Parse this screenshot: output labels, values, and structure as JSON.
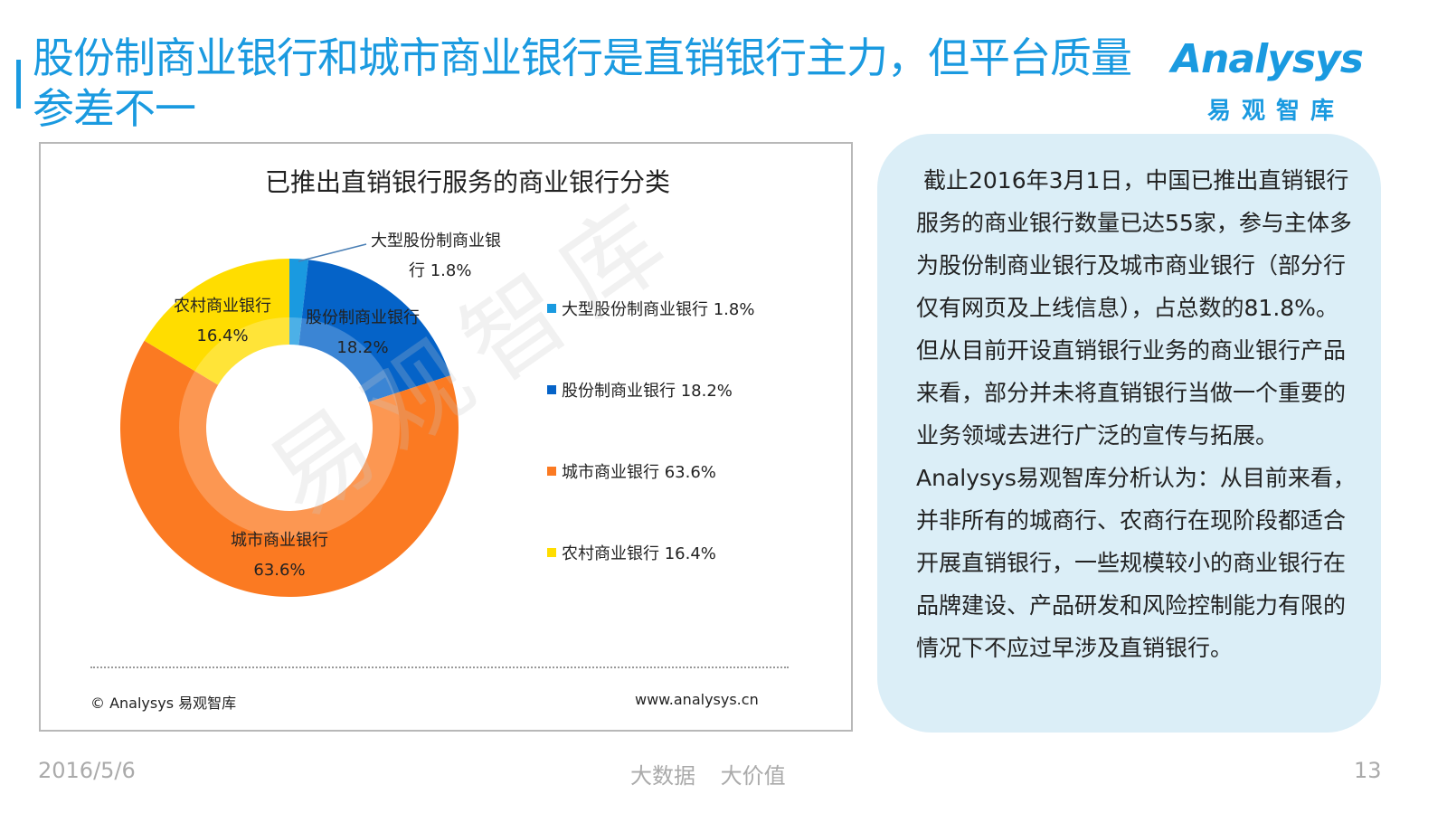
{
  "header": {
    "title": "股份制商业银行和城市商业银行是直销银行主力，但平台质量参差不一",
    "logo_text_en": "Analysys",
    "logo_text_cn": "易观智库"
  },
  "chart_data": {
    "type": "pie",
    "variant": "donut",
    "title": "已推出直销银行服务的商业银行分类",
    "categories": [
      "大型股份制商业银行",
      "股份制商业银行",
      "城市商业银行",
      "农村商业银行"
    ],
    "values": [
      1.8,
      18.2,
      63.6,
      16.4
    ],
    "unit": "%",
    "value_labels": [
      "1.8%",
      "18.2%",
      "63.6%",
      "16.4%"
    ],
    "colors": [
      "#1a9ae0",
      "#0563c8",
      "#fb7a22",
      "#ffdd00"
    ],
    "legend": "right",
    "data_labels": [
      {
        "name_line": "大型股份制商业银",
        "value_line": "行  1.8%"
      },
      {
        "name_line": "股份制商业银行",
        "value_line": "18.2%"
      },
      {
        "name_line": "城市商业银行",
        "value_line": "63.6%"
      },
      {
        "name_line": "农村商业银行",
        "value_line": "16.4%"
      }
    ],
    "legend_entries": [
      "大型股份制商业银行  1.8%",
      "股份制商业银行  18.2%",
      "城市商业银行  63.6%",
      "农村商业银行  16.4%"
    ]
  },
  "chart_footer": {
    "copyright": "© Analysys 易观智库",
    "website": "www.analysys.cn"
  },
  "watermark": "易观智库",
  "textbox": {
    "paragraphs": [
      "截止2016年3月1日，中国已推出直销银行服务的商业银行数量已达55家，参与主体多为股份制商业银行及城市商业银行（部分行仅有网页及上线信息），占总数的81.8%。但从目前开设直销银行业务的商业银行产品来看，部分并未将直销银行当做一个重要的业务领域去进行广泛的宣传与拓展。",
      "Analysys易观智库分析认为：从目前来看，并非所有的城商行、农商行在现阶段都适合开展直销银行，一些规模较小的商业银行在品牌建设、产品研发和风险控制能力有限的情况下不应过早涉及直销银行。"
    ]
  },
  "footer": {
    "date": "2016/5/6",
    "slogan": "大数据 大价值",
    "page": "13"
  }
}
